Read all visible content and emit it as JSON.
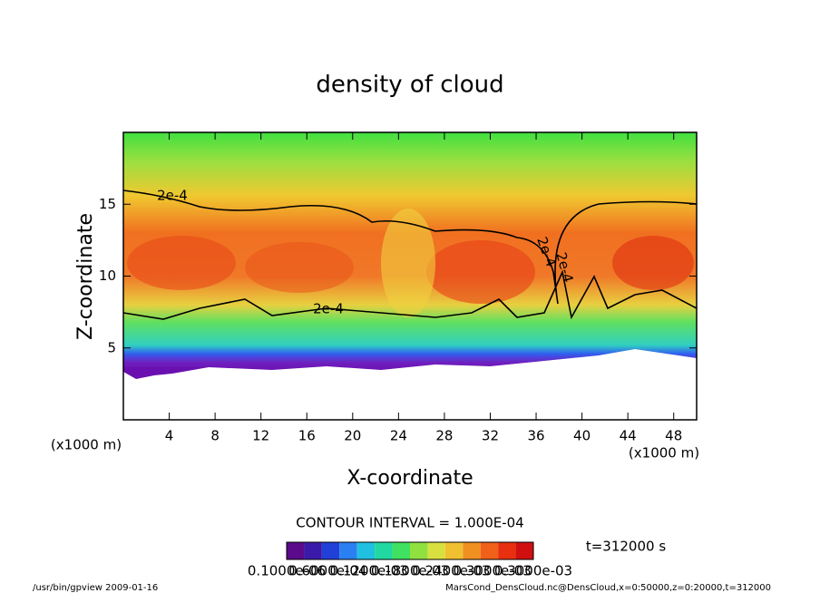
{
  "chart_data": {
    "type": "contour",
    "title": "density of cloud",
    "x_label": "X-coordinate",
    "y_label": "Z-coordinate",
    "x_unit_left": "(x1000 m)",
    "x_unit_right": "(x1000 m)",
    "xlim": [
      0,
      50
    ],
    "xticks": [
      4,
      8,
      12,
      16,
      20,
      24,
      28,
      32,
      36,
      40,
      44,
      48
    ],
    "ylim": [
      0,
      20
    ],
    "yticks": [
      5,
      10,
      15
    ],
    "contour_interval": "CONTOUR INTERVAL = 1.000E-04",
    "contour_labels": [
      "2e-4",
      "2e-4",
      "2e-4",
      "2e-4"
    ],
    "time_label": "t=312000 s",
    "colorbar": {
      "colors": [
        "#5a0a8a",
        "#3a1aa8",
        "#2040d8",
        "#2a80f0",
        "#20c0e0",
        "#20d8a0",
        "#40e060",
        "#90e040",
        "#d8e040",
        "#f0c030",
        "#f09020",
        "#f06018",
        "#e83010",
        "#d01010"
      ],
      "labels": [
        "0.1000e-06",
        "0.6000e-04",
        "0.1200e-03",
        "0.1800e-03",
        "0.2400e-03",
        "0.3000e-03",
        "0.3000e-03"
      ]
    },
    "footer_left": "/usr/bin/gpview  2009-01-16",
    "footer_right": "MarsCond_DensCloud.nc@DensCloud,x=0:50000,z=0:20000,t=312000"
  }
}
